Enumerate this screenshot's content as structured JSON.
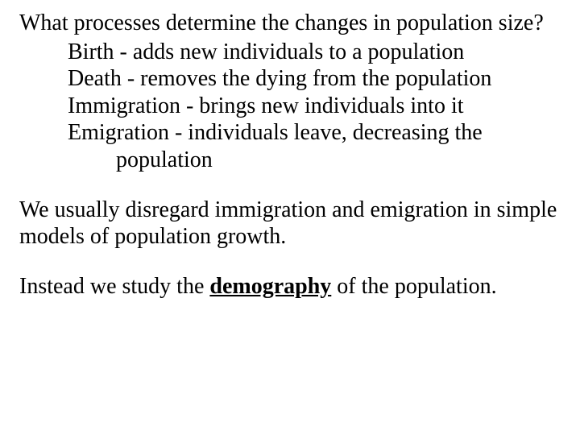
{
  "font": {
    "family": "Times New Roman",
    "size_pt": 28,
    "color": "#000000"
  },
  "background_color": "#ffffff",
  "question": "What processes determine the changes in population size?",
  "processes": [
    {
      "text": "Birth - adds new individuals to a population"
    },
    {
      "text": "Death - removes the dying from the population"
    },
    {
      "text": "Immigration - brings new individuals into it"
    },
    {
      "text": "Emigration - individuals leave, decreasing the",
      "cont": "population"
    }
  ],
  "para1": "We usually disregard immigration and emigration in simple models of population growth.",
  "para2_pre": "Instead we study the ",
  "para2_term": "demography",
  "para2_post": " of the population."
}
